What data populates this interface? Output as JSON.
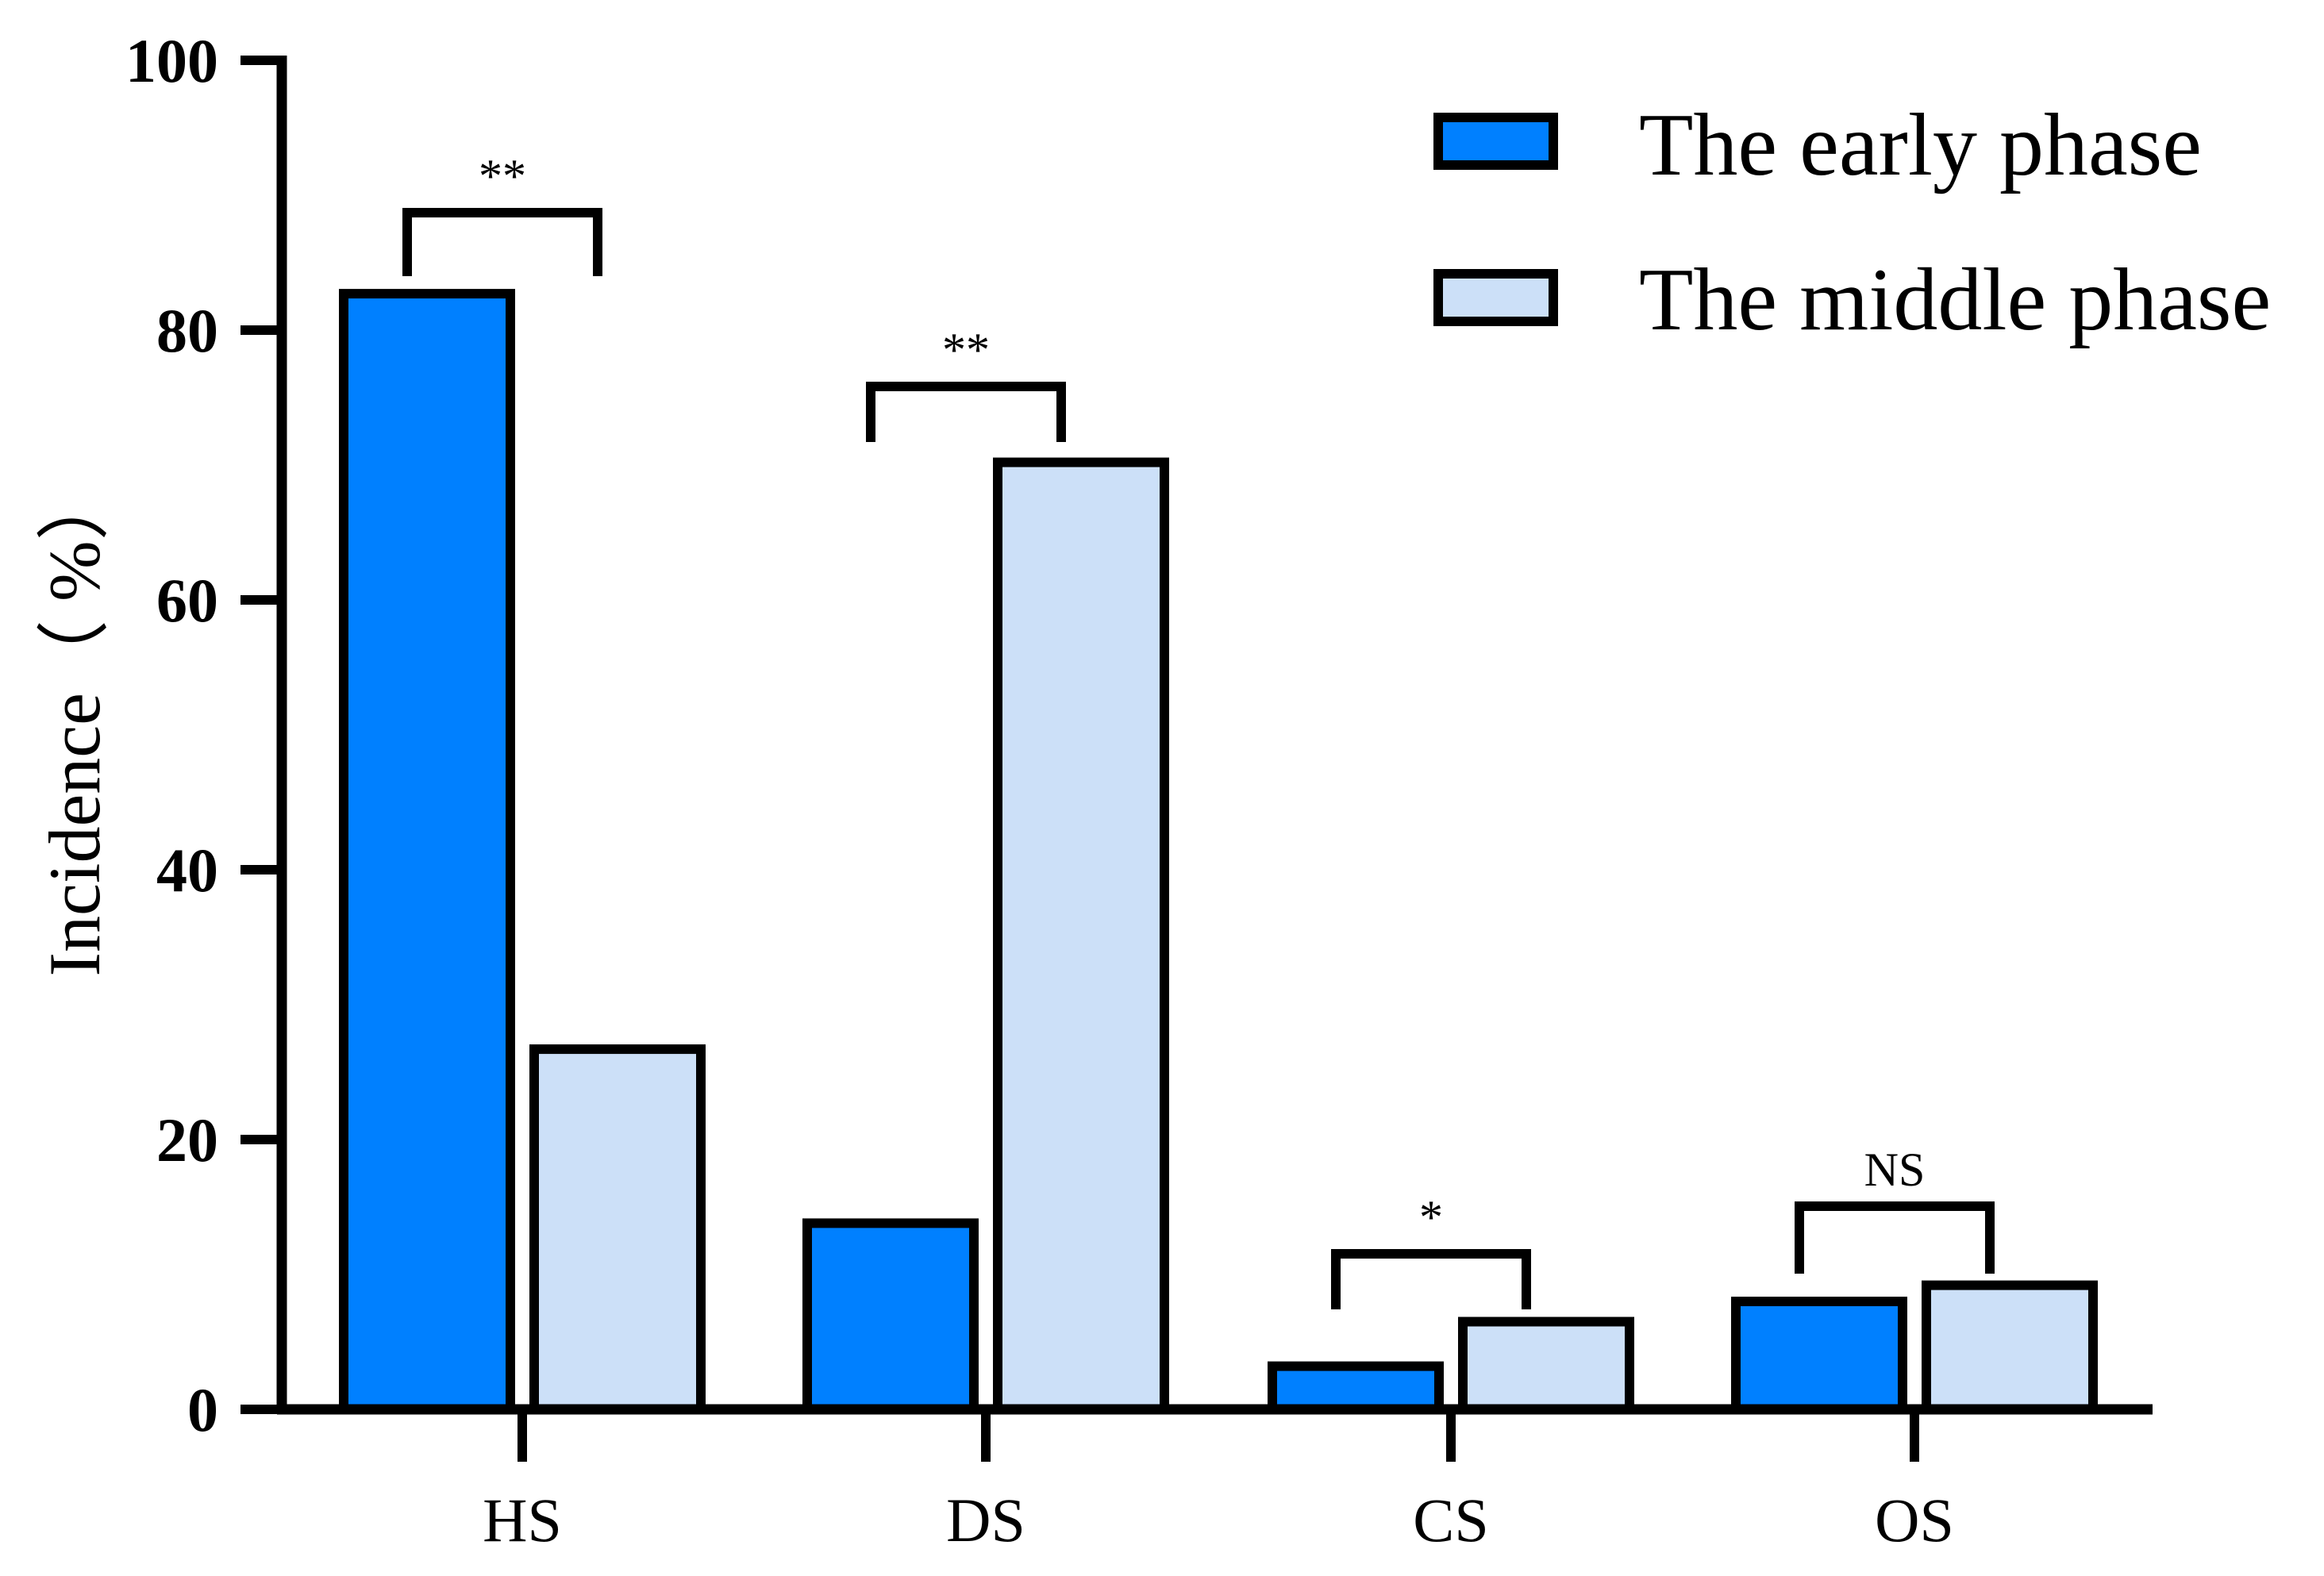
{
  "chart_data": {
    "type": "bar",
    "categories": [
      "HS",
      "DS",
      "CS",
      "OS"
    ],
    "series": [
      {
        "name": "The early phase",
        "values": [
          82.7,
          13.8,
          3.2,
          8.0
        ],
        "color": "#0080ff"
      },
      {
        "name": "The middle phase",
        "values": [
          26.7,
          70.2,
          6.5,
          9.2
        ],
        "color": "#cce0f8"
      }
    ],
    "ylabel": "Incidence（ %）",
    "xlabel": "",
    "ylim": [
      0,
      100
    ],
    "yticks": [
      0,
      20,
      40,
      60,
      80,
      100
    ],
    "legend_position": "top-right",
    "grid": false,
    "significance": [
      {
        "category": "HS",
        "label": "**"
      },
      {
        "category": "DS",
        "label": "**"
      },
      {
        "category": "CS",
        "label": "*"
      },
      {
        "category": "OS",
        "label": "NS"
      }
    ]
  }
}
